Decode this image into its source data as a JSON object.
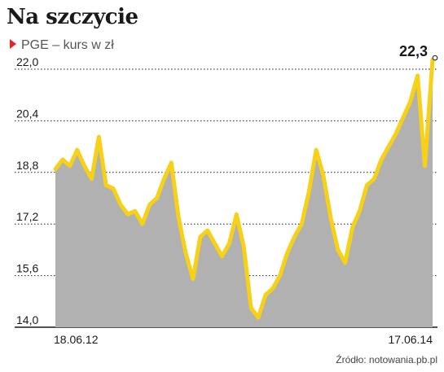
{
  "title": "Na szczycie",
  "subtitle": "PGE – kurs w zł",
  "source": "Źródło: notowania.pb.pl",
  "colors": {
    "line": "#f7d117",
    "area": "#b1b1b1",
    "marker": "#e0262b",
    "grid": "#1a1a1a"
  },
  "chart_data": {
    "type": "area",
    "series_name": "PGE",
    "unit": "zł",
    "ylim": [
      14.0,
      22.0
    ],
    "yticks": [
      "22,0",
      "20,4",
      "18,8",
      "17,2",
      "15,6",
      "14,0"
    ],
    "xticks": [
      "18.06.12",
      "17.06.14"
    ],
    "last_value_label": "22,3",
    "x": [
      "2012-06-18",
      "2012-07-02",
      "2012-07-16",
      "2012-07-30",
      "2012-08-13",
      "2012-08-27",
      "2012-09-10",
      "2012-09-24",
      "2012-10-08",
      "2012-10-22",
      "2012-11-05",
      "2012-11-19",
      "2012-12-03",
      "2012-12-17",
      "2012-12-31",
      "2013-01-14",
      "2013-01-28",
      "2013-02-11",
      "2013-02-25",
      "2013-03-11",
      "2013-03-25",
      "2013-04-08",
      "2013-04-22",
      "2013-05-06",
      "2013-05-20",
      "2013-06-03",
      "2013-06-17",
      "2013-07-01",
      "2013-07-15",
      "2013-07-29",
      "2013-08-12",
      "2013-08-26",
      "2013-09-09",
      "2013-09-23",
      "2013-10-07",
      "2013-10-21",
      "2013-11-04",
      "2013-11-18",
      "2013-12-02",
      "2013-12-16",
      "2013-12-30",
      "2014-01-13",
      "2014-01-27",
      "2014-02-10",
      "2014-02-24",
      "2014-03-10",
      "2014-03-24",
      "2014-04-07",
      "2014-04-21",
      "2014-05-05",
      "2014-05-19",
      "2014-06-02",
      "2014-06-17"
    ],
    "values": [
      18.9,
      19.2,
      19.0,
      19.5,
      19.0,
      18.6,
      19.9,
      18.4,
      18.3,
      17.8,
      17.5,
      17.6,
      17.2,
      17.8,
      18.0,
      18.6,
      19.1,
      17.4,
      16.3,
      15.5,
      16.8,
      17.0,
      16.6,
      16.2,
      16.6,
      17.5,
      16.5,
      14.6,
      14.3,
      15.0,
      15.2,
      15.6,
      16.3,
      16.8,
      17.2,
      18.2,
      19.5,
      18.7,
      17.4,
      16.4,
      16.0,
      17.1,
      17.6,
      18.4,
      18.6,
      19.2,
      19.6,
      20.0,
      20.5,
      21.0,
      21.8,
      19.0,
      22.3
    ]
  }
}
